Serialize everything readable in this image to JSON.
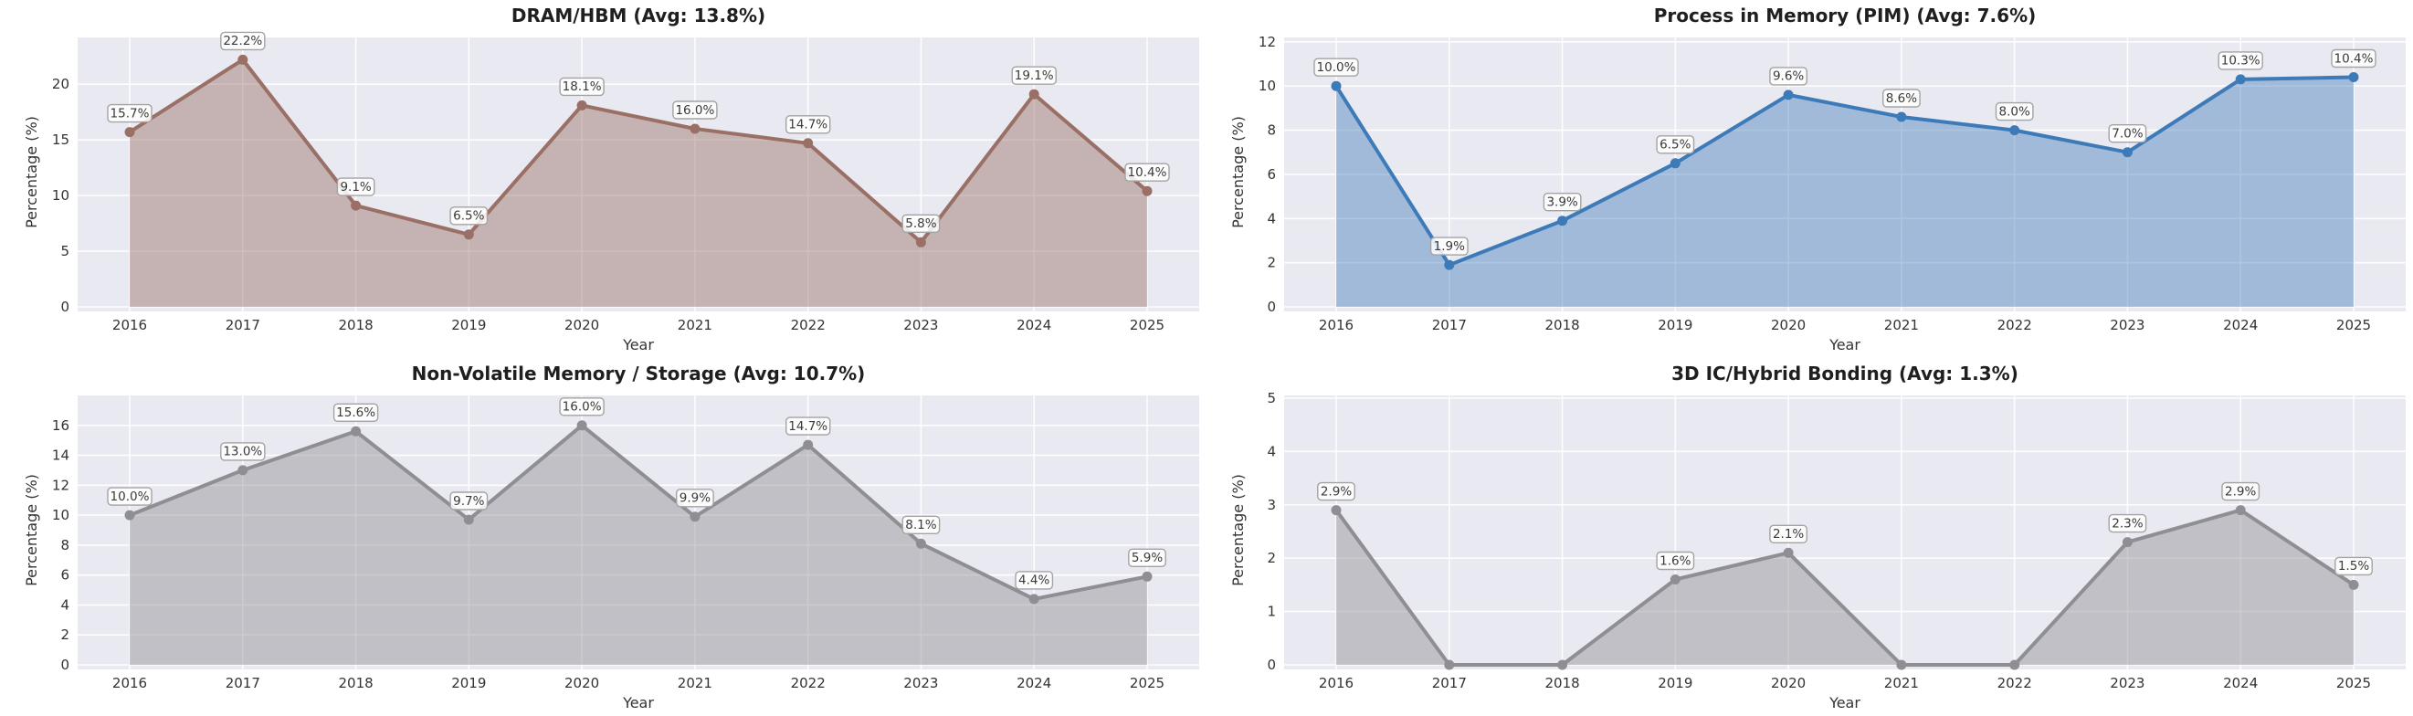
{
  "figure": {
    "layout": "2x2-grid",
    "plot_background": "#E9E9F1",
    "gridline_color": "#FFFFFF",
    "title_color": "#1f1f1f",
    "tick_color": "#333333",
    "label_box_border": "#A3A3A3",
    "label_text_color": "#3a3a3a"
  },
  "chart_data": [
    {
      "type": "area",
      "title": "DRAM/HBM (Avg: 13.8%)",
      "average": "13.8%",
      "xlabel": "Year",
      "ylabel": "Percentage (%)",
      "categories": [
        "2016",
        "2017",
        "2018",
        "2019",
        "2020",
        "2021",
        "2022",
        "2023",
        "2024",
        "2025"
      ],
      "values": [
        15.7,
        22.2,
        9.1,
        6.5,
        18.1,
        16.0,
        14.7,
        5.8,
        19.1,
        10.4
      ],
      "point_labels": [
        "15.7%",
        "22.2%",
        "9.1%",
        "6.5%",
        "18.1%",
        "16.0%",
        "14.7%",
        "5.8%",
        "19.1%",
        "10.4%"
      ],
      "yticks": [
        0,
        5,
        10,
        15,
        20
      ],
      "ylim": [
        0,
        24.2
      ],
      "grid": true,
      "legend": "none",
      "line_color": "#9A6F65",
      "fill_opacity": 0.45
    },
    {
      "type": "area",
      "title": "Process in Memory (PIM) (Avg: 7.6%)",
      "average": "7.6%",
      "xlabel": "Year",
      "ylabel": "Percentage (%)",
      "categories": [
        "2016",
        "2017",
        "2018",
        "2019",
        "2020",
        "2021",
        "2022",
        "2023",
        "2024",
        "2025"
      ],
      "values": [
        10.0,
        1.9,
        3.9,
        6.5,
        9.6,
        8.6,
        8.0,
        7.0,
        10.3,
        10.4
      ],
      "point_labels": [
        "10.0%",
        "1.9%",
        "3.9%",
        "6.5%",
        "9.6%",
        "8.6%",
        "8.0%",
        "7.0%",
        "10.3%",
        "10.4%"
      ],
      "yticks": [
        0,
        2,
        4,
        6,
        8,
        10,
        12
      ],
      "ylim": [
        0,
        12.2
      ],
      "grid": true,
      "legend": "none",
      "line_color": "#3D7AB8",
      "fill_opacity": 0.42
    },
    {
      "type": "area",
      "title": "Non-Volatile Memory / Storage (Avg: 10.7%)",
      "average": "10.7%",
      "xlabel": "Year",
      "ylabel": "Percentage (%)",
      "categories": [
        "2016",
        "2017",
        "2018",
        "2019",
        "2020",
        "2021",
        "2022",
        "2023",
        "2024",
        "2025"
      ],
      "values": [
        10.0,
        13.0,
        15.6,
        9.7,
        16.0,
        9.9,
        14.7,
        8.1,
        4.4,
        5.9
      ],
      "point_labels": [
        "10.0%",
        "13.0%",
        "15.6%",
        "9.7%",
        "16.0%",
        "9.9%",
        "14.7%",
        "8.1%",
        "4.4%",
        "5.9%"
      ],
      "yticks": [
        0,
        2,
        4,
        6,
        8,
        10,
        12,
        14,
        16
      ],
      "ylim": [
        0,
        18.0
      ],
      "grid": true,
      "legend": "none",
      "line_color": "#8F8F93",
      "fill_opacity": 0.45
    },
    {
      "type": "area",
      "title": "3D IC/Hybrid Bonding (Avg: 1.3%)",
      "average": "1.3%",
      "xlabel": "Year",
      "ylabel": "Percentage (%)",
      "categories": [
        "2016",
        "2017",
        "2018",
        "2019",
        "2020",
        "2021",
        "2022",
        "2023",
        "2024",
        "2025"
      ],
      "values": [
        2.9,
        0.0,
        0.0,
        1.6,
        2.1,
        0.0,
        0.0,
        2.3,
        2.9,
        1.5
      ],
      "point_labels": [
        "2.9%",
        "",
        "",
        "1.6%",
        "2.1%",
        "",
        "",
        "2.3%",
        "2.9%",
        "1.5%"
      ],
      "yticks": [
        0,
        1,
        2,
        3,
        4,
        5
      ],
      "ylim": [
        0,
        5.05
      ],
      "grid": true,
      "legend": "none",
      "line_color": "#8F8F93",
      "fill_opacity": 0.45
    }
  ]
}
